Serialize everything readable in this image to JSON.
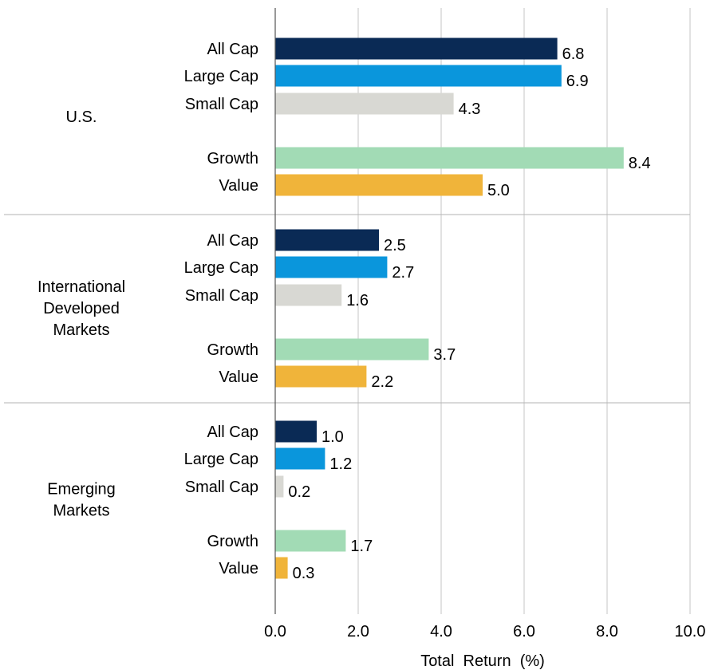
{
  "chart_data": {
    "type": "bar",
    "orientation": "horizontal",
    "xlabel": "Total  Return  (%)",
    "xlim": [
      0,
      10
    ],
    "x_ticks": [
      "0.0",
      "2.0",
      "4.0",
      "6.0",
      "8.0",
      "10.0"
    ],
    "grid": true,
    "legend": "none",
    "groups": [
      {
        "name": "U.S.",
        "bars": [
          {
            "category": "All Cap",
            "value": 6.8,
            "label": "6.8"
          },
          {
            "category": "Large Cap",
            "value": 6.9,
            "label": "6.9"
          },
          {
            "category": "Small Cap",
            "value": 4.3,
            "label": "4.3"
          },
          {
            "category": "Growth",
            "value": 8.4,
            "label": "8.4"
          },
          {
            "category": "Value",
            "value": 5.0,
            "label": "5.0"
          }
        ]
      },
      {
        "name": "International Developed Markets",
        "name_lines": [
          "International",
          "Developed",
          "Markets"
        ],
        "bars": [
          {
            "category": "All Cap",
            "value": 2.5,
            "label": "2.5"
          },
          {
            "category": "Large Cap",
            "value": 2.7,
            "label": "2.7"
          },
          {
            "category": "Small Cap",
            "value": 1.6,
            "label": "1.6"
          },
          {
            "category": "Growth",
            "value": 3.7,
            "label": "3.7"
          },
          {
            "category": "Value",
            "value": 2.2,
            "label": "2.2"
          }
        ]
      },
      {
        "name": "Emerging Markets",
        "name_lines": [
          "Emerging",
          "Markets"
        ],
        "bars": [
          {
            "category": "All Cap",
            "value": 1.0,
            "label": "1.0"
          },
          {
            "category": "Large Cap",
            "value": 1.2,
            "label": "1.2"
          },
          {
            "category": "Small Cap",
            "value": 0.2,
            "label": "0.2"
          },
          {
            "category": "Growth",
            "value": 1.7,
            "label": "1.7"
          },
          {
            "category": "Value",
            "value": 0.3,
            "label": "0.3"
          }
        ]
      }
    ],
    "colors": {
      "All Cap": "#0a2a55",
      "Large Cap": "#0a96dc",
      "Small Cap": "#d8d8d3",
      "Growth": "#a2dbb5",
      "Value": "#f0b43a"
    }
  }
}
